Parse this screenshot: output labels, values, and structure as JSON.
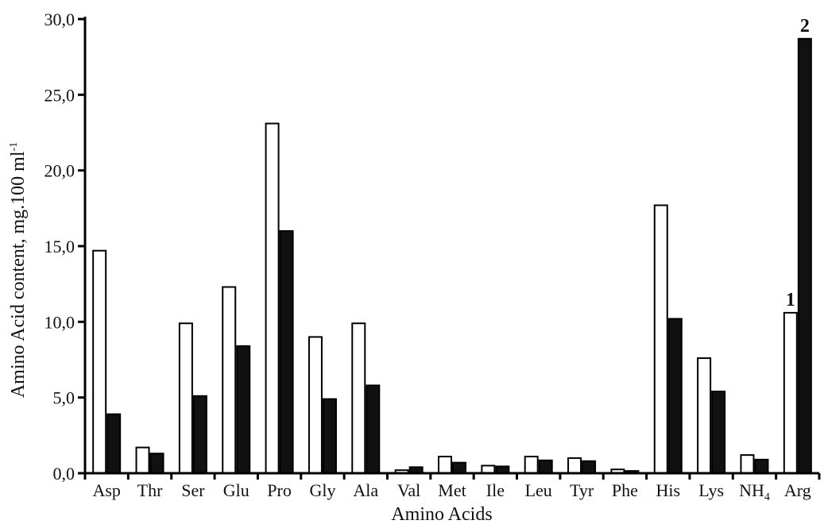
{
  "chart_data": {
    "type": "bar",
    "xlabel": "Amino Acids",
    "ylabel": "Amino Acid content, mg.100 ml",
    "ylabel_sup": "-1",
    "ylim": [
      0,
      30
    ],
    "yticks": [
      "0,0",
      "5,0",
      "10,0",
      "15,0",
      "20,0",
      "25,0",
      "30,0"
    ],
    "ytick_values": [
      0,
      5,
      10,
      15,
      20,
      25,
      30
    ],
    "grid": false,
    "categories": [
      "Asp",
      "Thr",
      "Ser",
      "Glu",
      "Pro",
      "Gly",
      "Ala",
      "Val",
      "Met",
      "Ile",
      "Leu",
      "Tyr",
      "Phe",
      "His",
      "Lys",
      "NH4",
      "Arg"
    ],
    "category_display": [
      {
        "main": "Asp",
        "sub": ""
      },
      {
        "main": "Thr",
        "sub": ""
      },
      {
        "main": "Ser",
        "sub": ""
      },
      {
        "main": "Glu",
        "sub": ""
      },
      {
        "main": "Pro",
        "sub": ""
      },
      {
        "main": "Gly",
        "sub": ""
      },
      {
        "main": "Ala",
        "sub": ""
      },
      {
        "main": "Val",
        "sub": ""
      },
      {
        "main": "Met",
        "sub": ""
      },
      {
        "main": "Ile",
        "sub": ""
      },
      {
        "main": "Leu",
        "sub": ""
      },
      {
        "main": "Tyr",
        "sub": ""
      },
      {
        "main": "Phe",
        "sub": ""
      },
      {
        "main": "His",
        "sub": ""
      },
      {
        "main": "Lys",
        "sub": ""
      },
      {
        "main": "NH",
        "sub": "4"
      },
      {
        "main": "Arg",
        "sub": ""
      }
    ],
    "series": [
      {
        "label": "1",
        "fill": "#ffffff",
        "stroke": "#000000",
        "values": [
          14.7,
          1.7,
          9.9,
          12.3,
          23.1,
          9.0,
          9.9,
          0.2,
          1.1,
          0.5,
          1.1,
          1.0,
          0.25,
          17.7,
          7.6,
          1.2,
          10.6
        ]
      },
      {
        "label": "2",
        "fill": "#111111",
        "stroke": "#000000",
        "values": [
          3.9,
          1.3,
          5.1,
          8.4,
          16.0,
          4.9,
          5.8,
          0.4,
          0.7,
          0.45,
          0.85,
          0.8,
          0.15,
          10.2,
          5.4,
          0.9,
          28.7
        ]
      }
    ],
    "annotations": [
      {
        "text": "1",
        "category": "Arg",
        "series": 0
      },
      {
        "text": "2",
        "category": "Arg",
        "series": 1
      }
    ]
  }
}
